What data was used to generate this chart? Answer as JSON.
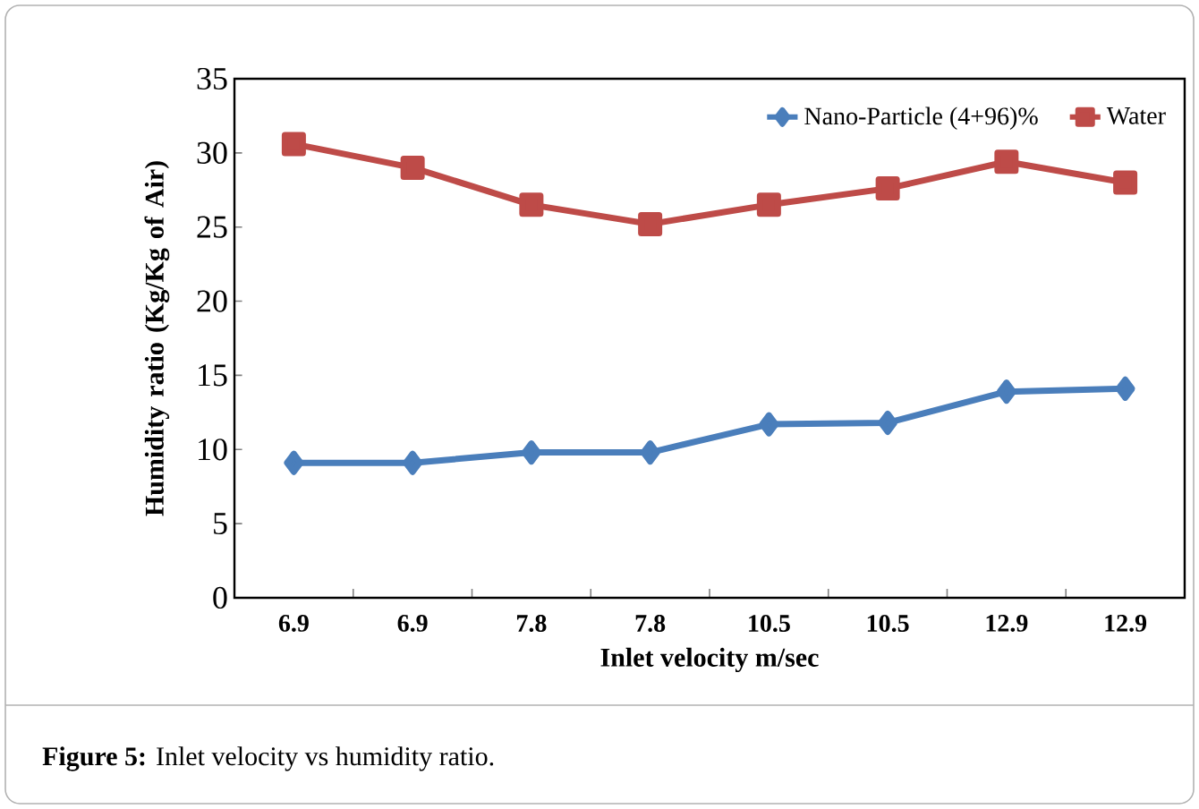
{
  "chart_data": {
    "type": "line",
    "xlabel": "Inlet velocity m/sec",
    "ylabel": "Humidity ratio (Kg/Kg of Air)",
    "categories": [
      "6.9",
      "6.9",
      "7.8",
      "7.8",
      "10.5",
      "10.5",
      "12.9",
      "12.9"
    ],
    "series": [
      {
        "name": "Nano-Particle (4+96)%",
        "color": "#4a7ebb",
        "marker": "diamond",
        "values": [
          9.1,
          9.1,
          9.8,
          9.8,
          11.7,
          11.8,
          13.9,
          14.1
        ]
      },
      {
        "name": "Water",
        "color": "#be4b48",
        "marker": "square",
        "values": [
          30.6,
          29.0,
          26.5,
          25.2,
          26.5,
          27.6,
          29.4,
          28.0
        ]
      }
    ],
    "ylim": [
      0,
      35
    ],
    "yticks": [
      0,
      5,
      10,
      15,
      20,
      25,
      30,
      35
    ],
    "legend": "top right",
    "grid": false,
    "annotations": [
      "**Figure 5:** Inlet velocity vs humidity ratio."
    ]
  }
}
